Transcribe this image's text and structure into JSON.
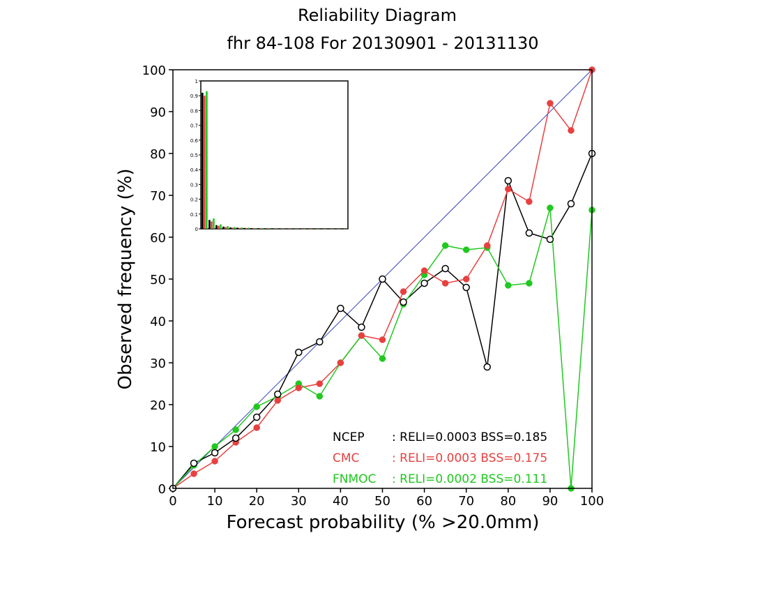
{
  "chart_data": {
    "type": "line",
    "title": "Reliability Diagram",
    "subtitle": "fhr 84-108 For 20130901 - 20131130",
    "xlabel": "Forecast probability (% >20.0mm)",
    "ylabel": "Observed frequency (%)",
    "xlim": [
      0,
      100
    ],
    "ylim": [
      0,
      100
    ],
    "xticks": [
      "0",
      "10",
      "20",
      "30",
      "40",
      "50",
      "60",
      "70",
      "80",
      "90",
      "100"
    ],
    "yticks": [
      "0",
      "10",
      "20",
      "30",
      "40",
      "50",
      "60",
      "70",
      "80",
      "90",
      "100"
    ],
    "grid": false,
    "diagonal_color": "#3040c0",
    "series": [
      {
        "name": "NCEP",
        "color": "#000000",
        "marker": "open-circle",
        "stats": ": RELI=0.0003 BSS=0.185",
        "x": [
          0,
          5,
          10,
          15,
          20,
          25,
          30,
          35,
          40,
          45,
          50,
          55,
          60,
          65,
          70,
          75,
          80,
          85,
          90,
          95,
          100
        ],
        "y": [
          0,
          6,
          8.5,
          12,
          17,
          22.5,
          32.5,
          35,
          43,
          38.5,
          50,
          44.5,
          49,
          52.5,
          48,
          29,
          73.5,
          61,
          59.5,
          68,
          80
        ]
      },
      {
        "name": "CMC",
        "color": "#e84040",
        "marker": "filled-circle",
        "stats": ": RELI=0.0003 BSS=0.175",
        "x": [
          0,
          5,
          10,
          15,
          20,
          25,
          30,
          35,
          40,
          45,
          50,
          55,
          60,
          65,
          70,
          75,
          80,
          85,
          90,
          95,
          100
        ],
        "y": [
          0,
          3.5,
          6.5,
          11,
          14.5,
          21,
          24,
          25,
          30,
          36.5,
          35.5,
          47,
          52,
          49,
          50,
          58,
          71.5,
          68.5,
          92,
          85.5,
          100
        ]
      },
      {
        "name": "FNMOC",
        "color": "#20c820",
        "marker": "filled-circle",
        "stats": ": RELI=0.0002 BSS=0.111",
        "x": [
          0,
          5,
          10,
          15,
          20,
          25,
          30,
          35,
          40,
          45,
          50,
          55,
          60,
          65,
          70,
          75,
          80,
          85,
          90,
          95,
          100
        ],
        "y": [
          0,
          5.5,
          10,
          14,
          19.5,
          22,
          25,
          22,
          30,
          36.5,
          31,
          44,
          51,
          58,
          57,
          57.5,
          48.5,
          49,
          67,
          0,
          66.5
        ]
      }
    ],
    "inset": {
      "type": "bar",
      "yticks": [
        "0",
        "0.1",
        "0.2",
        "0.3",
        "0.4",
        "0.5",
        "0.6",
        "0.7",
        "0.8",
        "0.9",
        "1"
      ],
      "ylim": [
        0,
        1
      ],
      "bins": [
        0,
        1,
        2,
        3,
        4,
        5,
        6,
        7,
        8,
        9,
        10,
        11,
        12,
        13,
        14,
        15,
        16,
        17,
        18,
        19,
        20
      ],
      "series": [
        {
          "name": "NCEP",
          "color": "#000000",
          "values": [
            0.92,
            0.06,
            0.025,
            0.015,
            0.01,
            0.008,
            0.006,
            0.005,
            0.004,
            0.003,
            0.003,
            0.002,
            0.002,
            0.002,
            0.001,
            0.001,
            0.001,
            0.001,
            0.001,
            0.001,
            0.001
          ]
        },
        {
          "name": "CMC",
          "color": "#e84040",
          "values": [
            0.9,
            0.05,
            0.02,
            0.012,
            0.008,
            0.006,
            0.005,
            0.004,
            0.003,
            0.003,
            0.002,
            0.002,
            0.002,
            0.001,
            0.001,
            0.001,
            0.001,
            0.001,
            0.001,
            0.001,
            0.001
          ]
        },
        {
          "name": "FNMOC",
          "color": "#20c820",
          "values": [
            0.93,
            0.07,
            0.03,
            0.018,
            0.012,
            0.009,
            0.007,
            0.005,
            0.004,
            0.003,
            0.003,
            0.002,
            0.002,
            0.002,
            0.001,
            0.001,
            0.001,
            0.001,
            0.001,
            0.001,
            0.001
          ]
        }
      ]
    }
  }
}
